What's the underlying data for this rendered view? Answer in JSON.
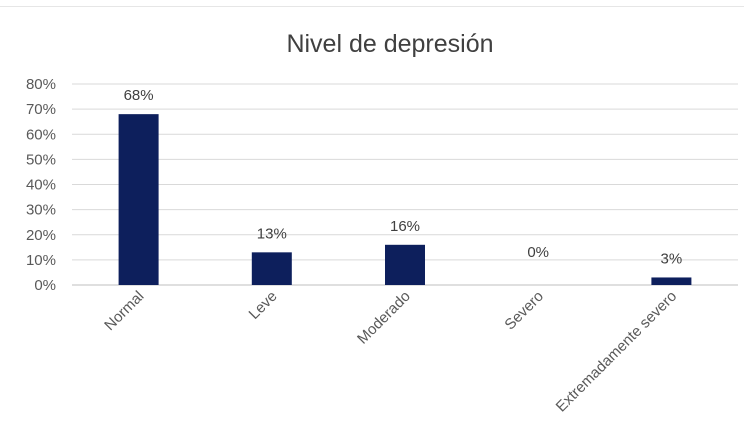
{
  "chart_data": {
    "type": "bar",
    "title": "Nivel de depresión",
    "xlabel": "",
    "ylabel": "",
    "categories": [
      "Normal",
      "Leve",
      "Moderado",
      "Severo",
      "Extremadamente severo"
    ],
    "values": [
      68,
      13,
      16,
      0,
      3
    ],
    "data_labels": [
      "68%",
      "13%",
      "16%",
      "0%",
      "3%"
    ],
    "yticks": [
      "0%",
      "10%",
      "20%",
      "30%",
      "40%",
      "50%",
      "60%",
      "70%",
      "80%"
    ],
    "ylim": [
      0,
      80
    ],
    "grid": true,
    "legend": "none",
    "bar_color": "#0d1f5c"
  }
}
